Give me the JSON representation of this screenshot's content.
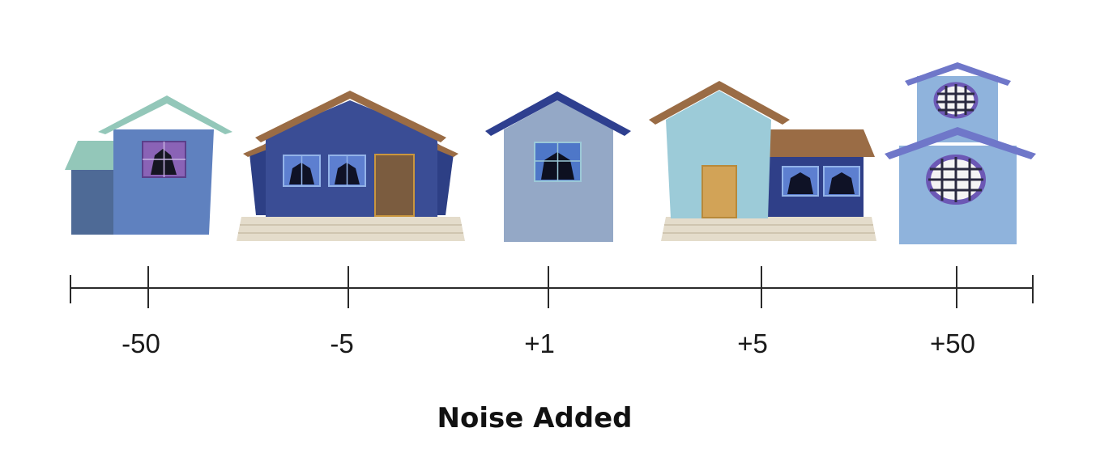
{
  "axis": {
    "title": "Noise Added",
    "ticks": [
      "-50",
      "-5",
      "+1",
      "+5",
      "+50"
    ]
  },
  "houses": [
    {
      "name": "house-minus-50",
      "tick": "-50"
    },
    {
      "name": "house-minus-5",
      "tick": "-5"
    },
    {
      "name": "house-plus-1",
      "tick": "+1"
    },
    {
      "name": "house-plus-5",
      "tick": "+5"
    },
    {
      "name": "house-plus-50",
      "tick": "+50"
    }
  ],
  "colors": {
    "axis_line": "#2a2a2a",
    "roof_mint": "#93c7b9",
    "roof_brown": "#9a6c45",
    "roof_navy": "#2e3f8f",
    "wall_blue": "#5f81bf",
    "wall_navy": "#3a4d95",
    "wall_gray_blue": "#94a8c6",
    "wall_light_blue": "#9ccbd8",
    "wall_sky": "#8fb3dc",
    "door_brown": "#7b5c3f",
    "door_tan": "#d2a357",
    "porch": "#e4dccb"
  }
}
